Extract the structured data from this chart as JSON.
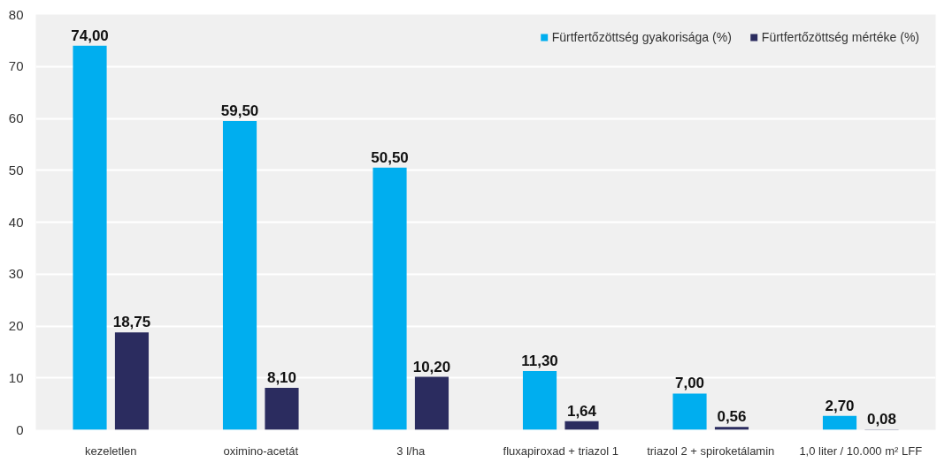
{
  "chart_data": {
    "type": "bar",
    "categories": [
      "kezeletlen",
      "oximino-acetát",
      "3 l/ha",
      "fluxapiroxad + triazol 1",
      "triazol 2 + spiroketálamin",
      "1,0 liter / 10.000 m² LFF"
    ],
    "series": [
      {
        "name": "Fürtfertőzöttség gyakorisága (%)",
        "color": "#00aeef",
        "values": [
          74.0,
          59.5,
          50.5,
          11.3,
          7.0,
          2.7
        ],
        "value_labels": [
          "74,00",
          "59,50",
          "50,50",
          "11,30",
          "7,00",
          "2,70"
        ]
      },
      {
        "name": "Fürtfertőzöttség mértéke (%)",
        "color": "#2b2c5f",
        "values": [
          18.75,
          8.1,
          10.2,
          1.64,
          0.56,
          0.08
        ],
        "value_labels": [
          "18,75",
          "8,10",
          "10,20",
          "1,64",
          "0,56",
          "0,08"
        ]
      }
    ],
    "ylim": [
      0,
      80
    ],
    "yticks": [
      0,
      10,
      20,
      30,
      40,
      50,
      60,
      70,
      80
    ],
    "grid": "y",
    "legend": "top right"
  }
}
